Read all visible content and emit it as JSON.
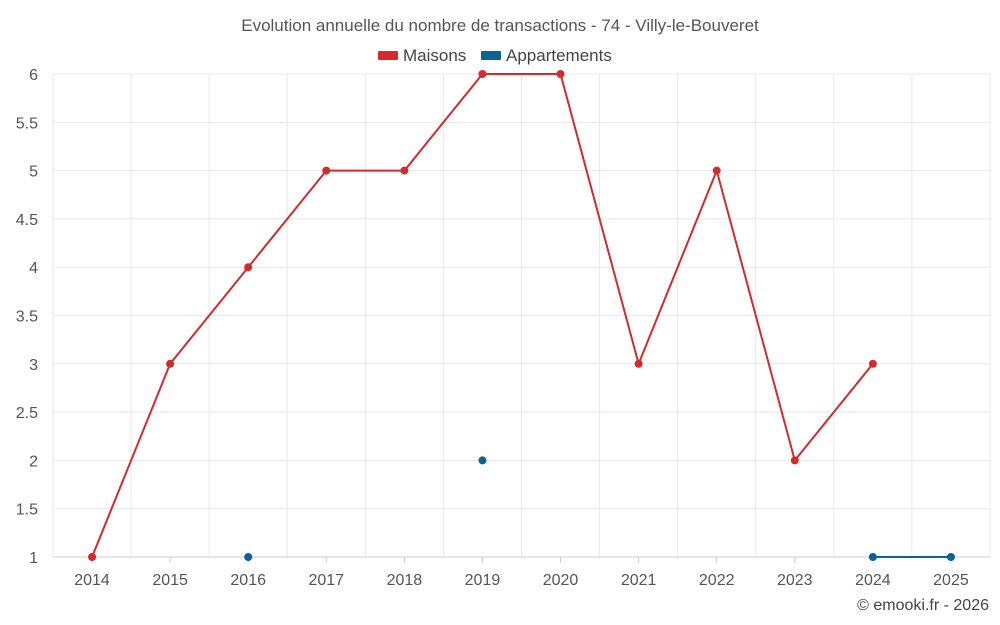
{
  "chart_data": {
    "type": "line",
    "title": "Evolution annuelle du nombre de transactions - 74 - Villy-le-Bouveret",
    "categories": [
      "2014",
      "2015",
      "2016",
      "2017",
      "2018",
      "2019",
      "2020",
      "2021",
      "2022",
      "2023",
      "2024",
      "2025"
    ],
    "series": [
      {
        "name": "Maisons",
        "color": "#d32a2a",
        "values": [
          1,
          3,
          4,
          5,
          5,
          6,
          6,
          3,
          5,
          2,
          3,
          null
        ]
      },
      {
        "name": "Appartements",
        "color": "#0b6294",
        "values": [
          null,
          null,
          1,
          null,
          null,
          2,
          null,
          null,
          null,
          null,
          1,
          1
        ]
      }
    ],
    "yticks": [
      "1",
      "1.5",
      "2",
      "2.5",
      "3",
      "3.5",
      "4",
      "4.5",
      "5",
      "5.5",
      "6"
    ],
    "ylim": [
      1,
      6
    ],
    "xlabel": "",
    "ylabel": "",
    "legend_position": "top-center",
    "grid": true
  },
  "credit": "© emooki.fr - 2026"
}
